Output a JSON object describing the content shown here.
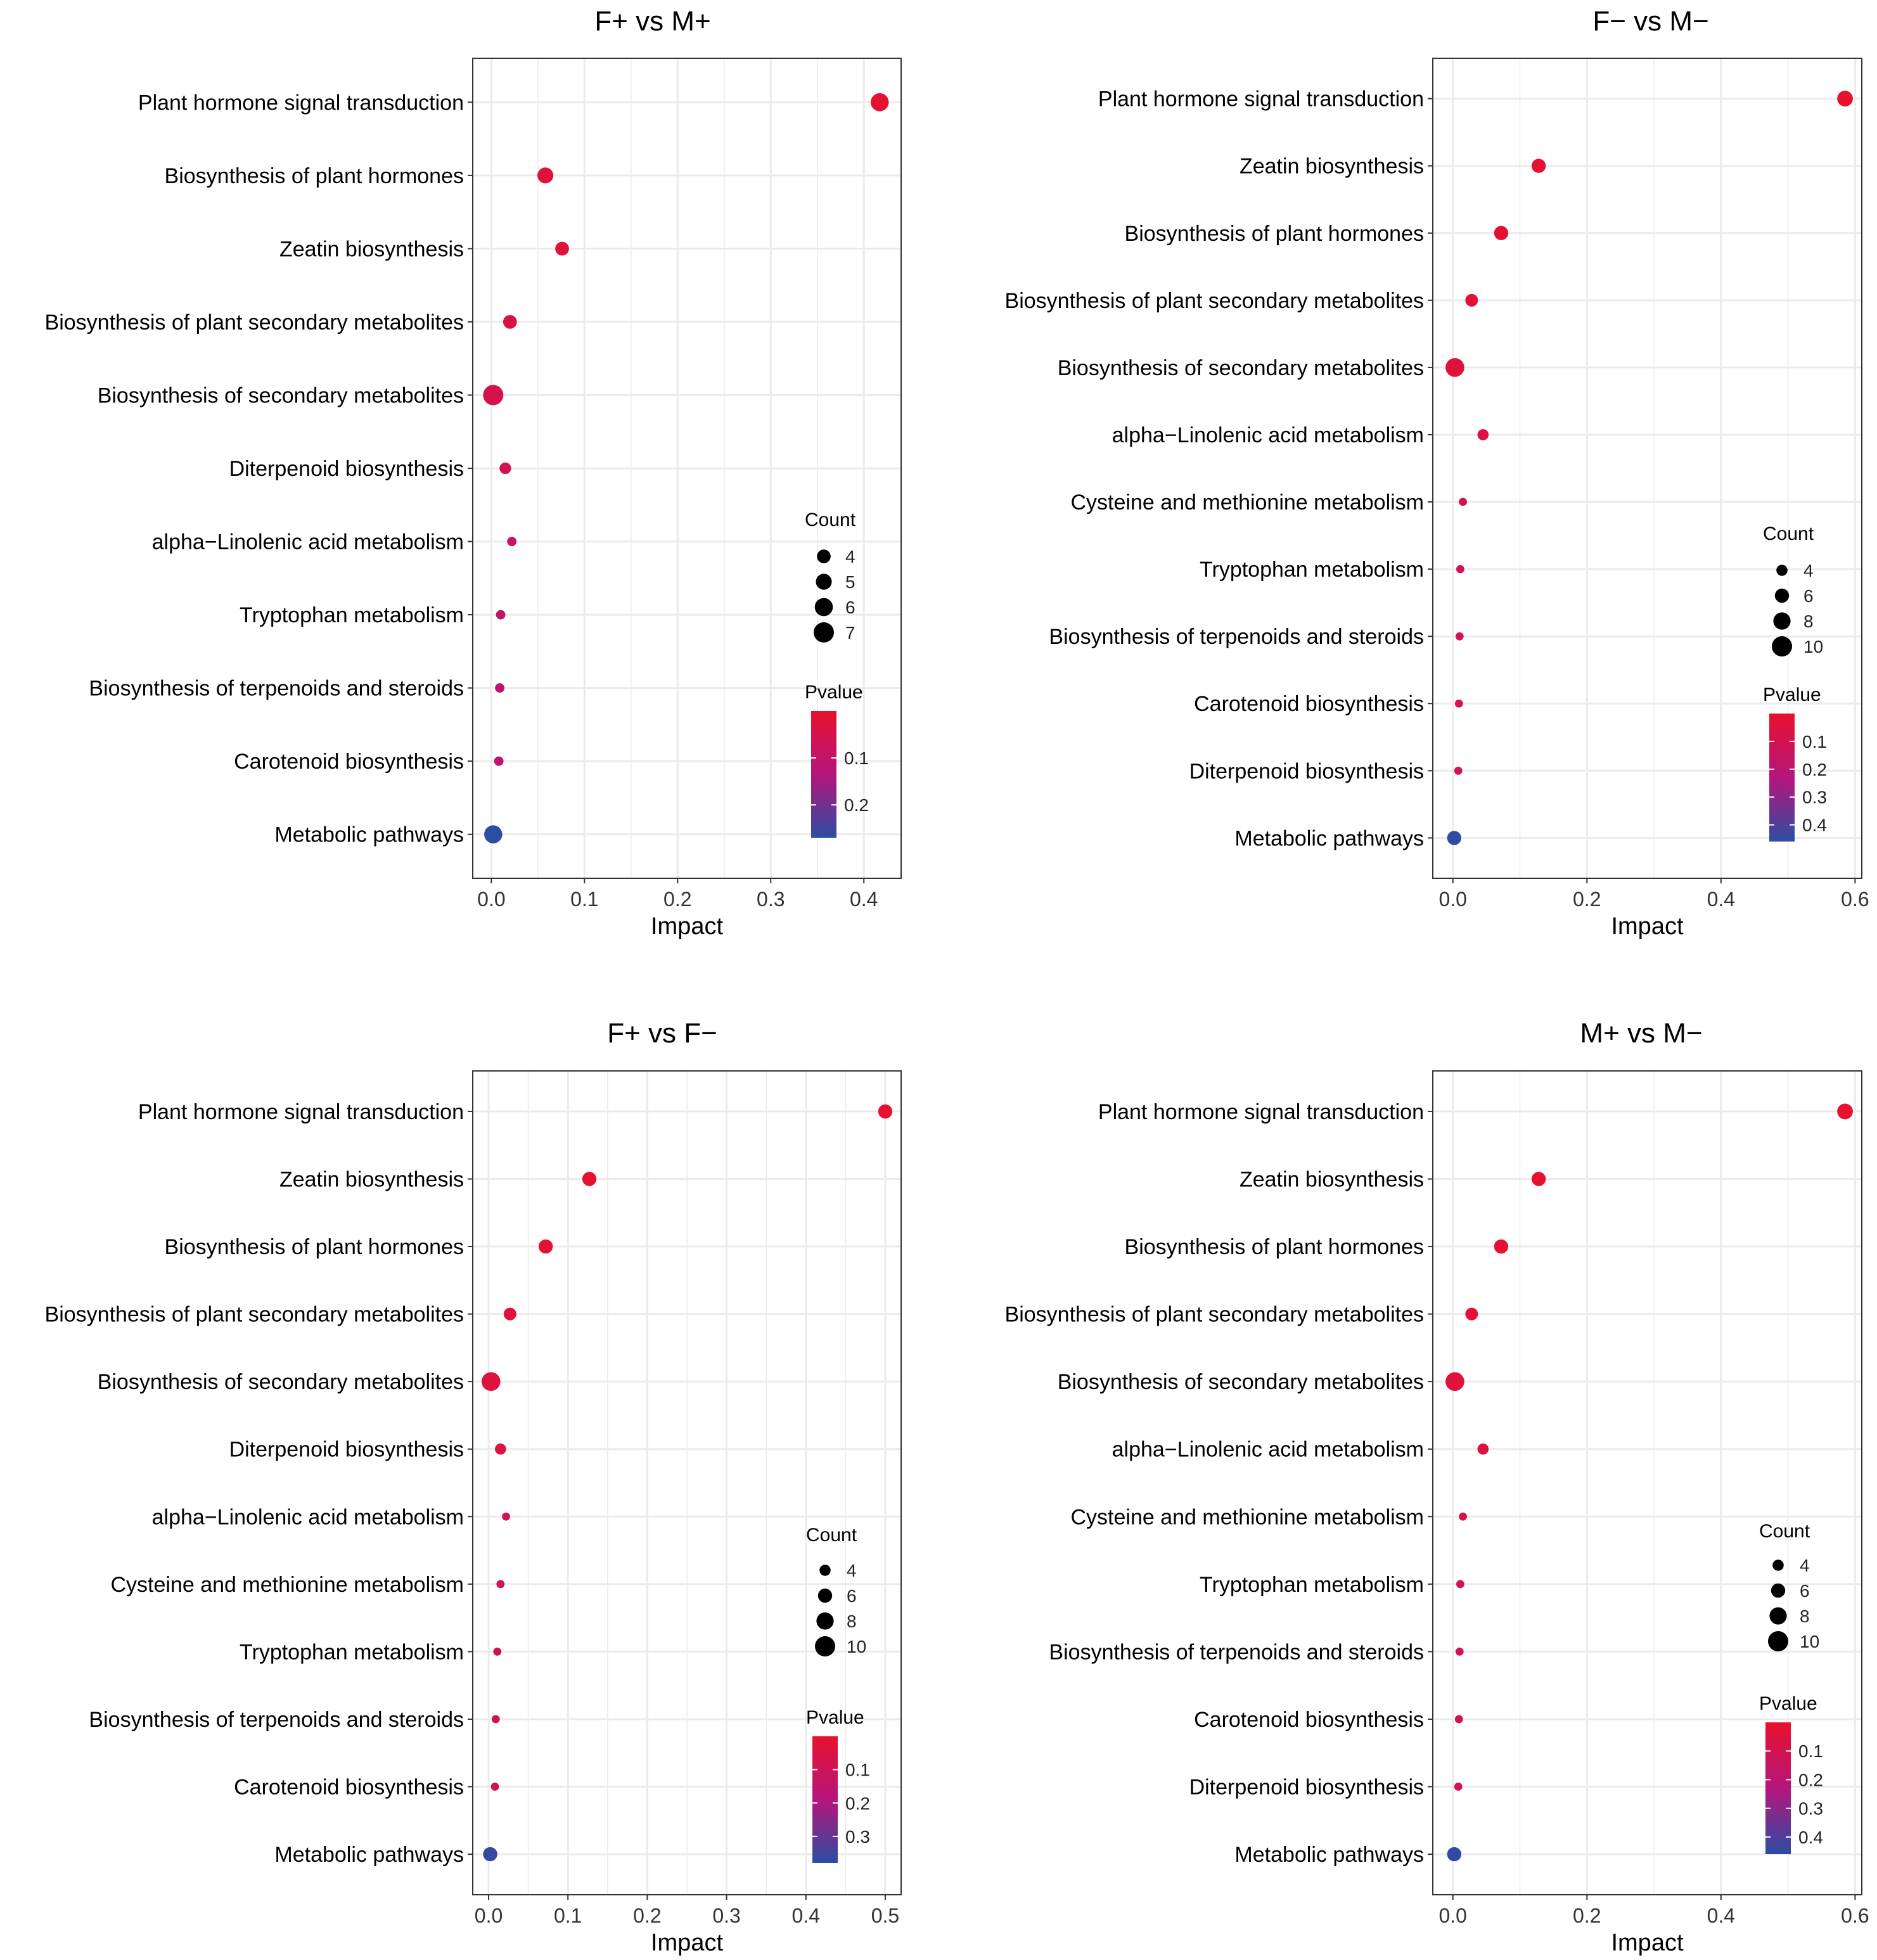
{
  "colors": {
    "low_p": "#e8112d",
    "mid_p": "#b5157c",
    "high_p": "#2b4da3",
    "grid": "#ebebeb",
    "frame": "#333333"
  },
  "chart_data": [
    {
      "type": "scatter",
      "title": "F+ vs M+",
      "xlabel": "Impact",
      "xlim": [
        -0.02,
        0.44
      ],
      "xticks": [
        "0.0",
        "0.1",
        "0.2",
        "0.3",
        "0.4"
      ],
      "xtick_values": [
        0.0,
        0.1,
        0.2,
        0.3,
        0.4
      ],
      "categories": [
        "Plant hormone signal transduction",
        "Biosynthesis of plant hormones",
        "Zeatin biosynthesis",
        "Biosynthesis of plant secondary metabolites",
        "Biosynthesis of secondary metabolites",
        "Diterpenoid biosynthesis",
        "alpha−Linolenic acid metabolism",
        "Tryptophan metabolism",
        "Biosynthesis of terpenoids and steroids",
        "Carotenoid biosynthesis",
        "Metabolic pathways"
      ],
      "impact": [
        0.417,
        0.058,
        0.076,
        0.02,
        0.002,
        0.015,
        0.022,
        0.01,
        0.009,
        0.008,
        0.002
      ],
      "count": [
        6,
        5,
        4,
        4,
        7,
        3,
        2,
        2,
        2,
        2,
        6
      ],
      "pvalue": [
        0.005,
        0.02,
        0.025,
        0.04,
        0.05,
        0.06,
        0.09,
        0.11,
        0.11,
        0.11,
        0.27
      ],
      "legend": {
        "size_title": "Count",
        "size_labels": [
          "4",
          "5",
          "6",
          "7"
        ],
        "size_values": [
          4,
          5,
          6,
          7
        ],
        "color_title": "Pvalue",
        "color_labels": [
          "0.1",
          "0.2"
        ],
        "color_values": [
          0.1,
          0.2
        ],
        "color_range": [
          0.0,
          0.27
        ]
      }
    },
    {
      "type": "scatter",
      "title": "F− vs M−",
      "xlabel": "Impact",
      "xlim": [
        -0.03,
        0.61
      ],
      "xticks": [
        "0.0",
        "0.2",
        "0.4",
        "0.6"
      ],
      "xtick_values": [
        0.0,
        0.2,
        0.4,
        0.6
      ],
      "categories": [
        "Plant hormone signal transduction",
        "Zeatin biosynthesis",
        "Biosynthesis of plant hormones",
        "Biosynthesis of plant secondary metabolites",
        "Biosynthesis of secondary metabolites",
        "alpha−Linolenic acid metabolism",
        "Cysteine and methionine metabolism",
        "Tryptophan metabolism",
        "Biosynthesis of terpenoids and steroids",
        "Carotenoid biosynthesis",
        "Diterpenoid biosynthesis",
        "Metabolic pathways"
      ],
      "impact": [
        0.585,
        0.128,
        0.072,
        0.028,
        0.003,
        0.045,
        0.015,
        0.011,
        0.01,
        0.009,
        0.008,
        0.002
      ],
      "count": [
        7,
        6,
        6,
        5,
        9,
        4,
        2,
        2,
        2,
        2,
        2,
        6
      ],
      "pvalue": [
        0.005,
        0.01,
        0.02,
        0.03,
        0.04,
        0.06,
        0.09,
        0.1,
        0.1,
        0.1,
        0.1,
        0.45
      ],
      "legend": {
        "size_title": "Count",
        "size_labels": [
          "4",
          "6",
          "8",
          "10"
        ],
        "size_values": [
          4,
          6,
          8,
          10
        ],
        "color_title": "Pvalue",
        "color_labels": [
          "0.1",
          "0.2",
          "0.3",
          "0.4"
        ],
        "color_values": [
          0.1,
          0.2,
          0.3,
          0.4
        ],
        "color_range": [
          0.0,
          0.46
        ]
      }
    },
    {
      "type": "scatter",
      "title": "F+ vs F−",
      "xlabel": "Impact",
      "xlim": [
        -0.02,
        0.52
      ],
      "xticks": [
        "0.0",
        "0.1",
        "0.2",
        "0.3",
        "0.4",
        "0.5"
      ],
      "xtick_values": [
        0.0,
        0.1,
        0.2,
        0.3,
        0.4,
        0.5
      ],
      "categories": [
        "Plant hormone signal transduction",
        "Zeatin biosynthesis",
        "Biosynthesis of plant hormones",
        "Biosynthesis of plant secondary metabolites",
        "Biosynthesis of secondary metabolites",
        "Diterpenoid biosynthesis",
        "alpha−Linolenic acid metabolism",
        "Cysteine and methionine metabolism",
        "Tryptophan metabolism",
        "Biosynthesis of terpenoids and steroids",
        "Carotenoid biosynthesis",
        "Metabolic pathways"
      ],
      "impact": [
        0.5,
        0.127,
        0.072,
        0.027,
        0.003,
        0.015,
        0.022,
        0.015,
        0.011,
        0.009,
        0.008,
        0.002
      ],
      "count": [
        6,
        6,
        6,
        5,
        9,
        4,
        2,
        2,
        2,
        2,
        2,
        6
      ],
      "pvalue": [
        0.005,
        0.01,
        0.02,
        0.03,
        0.04,
        0.05,
        0.08,
        0.09,
        0.1,
        0.1,
        0.1,
        0.37
      ],
      "legend": {
        "size_title": "Count",
        "size_labels": [
          "4",
          "6",
          "8",
          "10"
        ],
        "size_values": [
          4,
          6,
          8,
          10
        ],
        "color_title": "Pvalue",
        "color_labels": [
          "0.1",
          "0.2",
          "0.3"
        ],
        "color_values": [
          0.1,
          0.2,
          0.3
        ],
        "color_range": [
          0.0,
          0.38
        ]
      }
    },
    {
      "type": "scatter",
      "title": "M+ vs M−",
      "xlabel": "Impact",
      "xlim": [
        -0.03,
        0.61
      ],
      "xticks": [
        "0.0",
        "0.2",
        "0.4",
        "0.6"
      ],
      "xtick_values": [
        0.0,
        0.2,
        0.4,
        0.6
      ],
      "categories": [
        "Plant hormone signal transduction",
        "Zeatin biosynthesis",
        "Biosynthesis of plant hormones",
        "Biosynthesis of plant secondary metabolites",
        "Biosynthesis of secondary metabolites",
        "alpha−Linolenic acid metabolism",
        "Cysteine and methionine metabolism",
        "Tryptophan metabolism",
        "Biosynthesis of terpenoids and steroids",
        "Carotenoid biosynthesis",
        "Diterpenoid biosynthesis",
        "Metabolic pathways"
      ],
      "impact": [
        0.585,
        0.128,
        0.072,
        0.028,
        0.003,
        0.045,
        0.015,
        0.011,
        0.01,
        0.009,
        0.008,
        0.002
      ],
      "count": [
        7,
        6,
        6,
        5,
        9,
        4,
        2,
        2,
        2,
        2,
        2,
        6
      ],
      "pvalue": [
        0.005,
        0.01,
        0.02,
        0.03,
        0.04,
        0.06,
        0.09,
        0.1,
        0.1,
        0.1,
        0.1,
        0.45
      ],
      "legend": {
        "size_title": "Count",
        "size_labels": [
          "4",
          "6",
          "8",
          "10"
        ],
        "size_values": [
          4,
          6,
          8,
          10
        ],
        "color_title": "Pvalue",
        "color_labels": [
          "0.1",
          "0.2",
          "0.3",
          "0.4"
        ],
        "color_values": [
          0.1,
          0.2,
          0.3,
          0.4
        ],
        "color_range": [
          0.0,
          0.46
        ]
      }
    }
  ]
}
